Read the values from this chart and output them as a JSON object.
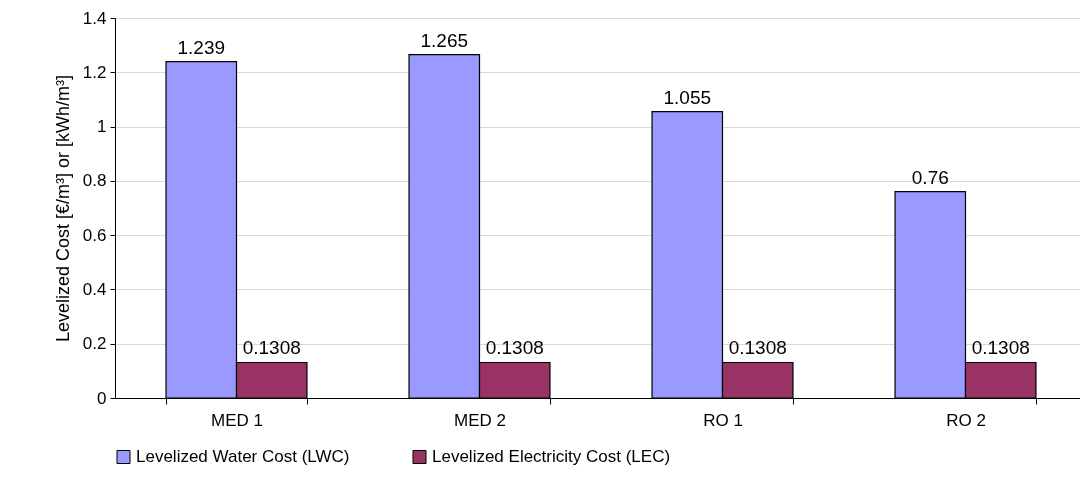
{
  "chart_data": {
    "type": "bar",
    "ylabel": "Levelized Cost  [€/m³] or [kWh/m³]",
    "categories": [
      "MED 1",
      "MED 2",
      "RO 1",
      "RO 2"
    ],
    "series": [
      {
        "name": "Levelized Water Cost (LWC)",
        "color": "#9999ff",
        "values": [
          1.239,
          1.265,
          1.055,
          0.76
        ]
      },
      {
        "name": "Levelized Electricity Cost (LEC)",
        "color": "#993366",
        "values": [
          0.1308,
          0.1308,
          0.1308,
          0.1308
        ]
      }
    ],
    "ylim": [
      0,
      1.4
    ],
    "yticks": [
      0,
      0.2,
      0.4,
      0.6,
      0.8,
      1,
      1.2,
      1.4
    ],
    "grid": "y",
    "legend": "bottom",
    "data_labels": true
  }
}
